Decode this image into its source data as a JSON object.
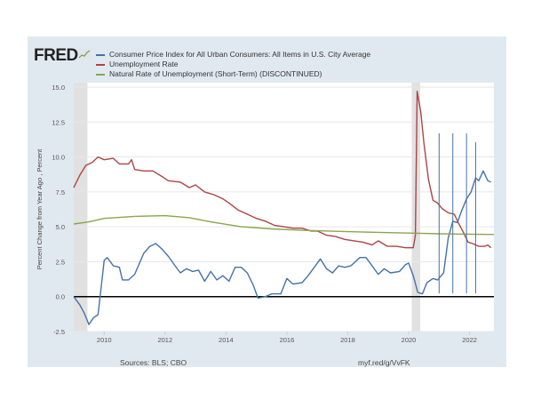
{
  "logo": "FRED",
  "colors": {
    "cpi": "#4572a7",
    "unrate": "#aa4643",
    "nrou": "#89a54e",
    "recession": "#e1e1e1",
    "zero_line": "#000000",
    "annotation": "#4572a7"
  },
  "chart_data": {
    "type": "line",
    "ylabel": "Percent Change from Year Ago , Percent",
    "xlim": [
      2009.0,
      2022.8
    ],
    "ylim": [
      -2.5,
      15.0
    ],
    "yticks": [
      "-2.5",
      "0.0",
      "2.5",
      "5.0",
      "7.5",
      "10.0",
      "12.5",
      "15.0"
    ],
    "ytick_values": [
      -2.5,
      0,
      2.5,
      5,
      7.5,
      10,
      12.5,
      15
    ],
    "xticks": [
      "2010",
      "2012",
      "2014",
      "2016",
      "2018",
      "2020",
      "2022"
    ],
    "xtick_values": [
      2010,
      2012,
      2014,
      2016,
      2018,
      2020,
      2022
    ],
    "grid": "horizontal",
    "legend_placement": "top-left",
    "recessions": [
      [
        2009.0,
        2009.45
      ],
      [
        2020.1,
        2020.38
      ]
    ],
    "annotation_lines": [
      2021.0,
      2021.45,
      2021.9,
      2022.2
    ],
    "series": [
      {
        "name": "Consumer Price Index for All Urban Consumers: All Items in U.S. City Average",
        "color": "#4572a7",
        "x": [
          2009.0,
          2009.2,
          2009.35,
          2009.5,
          2009.65,
          2009.8,
          2010.0,
          2010.1,
          2010.3,
          2010.5,
          2010.6,
          2010.8,
          2011.0,
          2011.3,
          2011.5,
          2011.7,
          2011.9,
          2012.1,
          2012.3,
          2012.5,
          2012.7,
          2012.9,
          2013.1,
          2013.3,
          2013.5,
          2013.7,
          2013.9,
          2014.1,
          2014.3,
          2014.5,
          2014.7,
          2014.9,
          2015.05,
          2015.3,
          2015.5,
          2015.8,
          2016.0,
          2016.2,
          2016.5,
          2016.7,
          2016.9,
          2017.1,
          2017.3,
          2017.5,
          2017.7,
          2017.9,
          2018.1,
          2018.4,
          2018.6,
          2018.8,
          2019.0,
          2019.2,
          2019.4,
          2019.7,
          2019.9,
          2020.0,
          2020.15,
          2020.3,
          2020.45,
          2020.6,
          2020.8,
          2020.95,
          2021.15,
          2021.3,
          2021.45,
          2021.6,
          2021.75,
          2021.9,
          2022.05,
          2022.2,
          2022.3,
          2022.45,
          2022.6,
          2022.7
        ],
        "y": [
          0.0,
          -0.6,
          -1.2,
          -2.0,
          -1.5,
          -1.3,
          2.6,
          2.8,
          2.2,
          2.1,
          1.2,
          1.2,
          1.6,
          3.1,
          3.6,
          3.8,
          3.4,
          2.9,
          2.3,
          1.7,
          2.0,
          1.8,
          1.9,
          1.1,
          1.8,
          1.2,
          1.5,
          1.1,
          2.1,
          2.1,
          1.7,
          0.8,
          -0.1,
          0.0,
          0.2,
          0.2,
          1.3,
          0.9,
          1.0,
          1.5,
          2.1,
          2.7,
          2.0,
          1.7,
          2.2,
          2.1,
          2.2,
          2.8,
          2.8,
          2.2,
          1.6,
          2.0,
          1.7,
          1.8,
          2.3,
          2.4,
          1.5,
          0.3,
          0.2,
          1.0,
          1.3,
          1.2,
          1.7,
          4.2,
          5.4,
          5.3,
          6.2,
          7.0,
          7.5,
          8.5,
          8.3,
          9.0,
          8.3,
          8.2
        ]
      },
      {
        "name": "Unemployment Rate",
        "color": "#aa4643",
        "x": [
          2009.0,
          2009.2,
          2009.4,
          2009.6,
          2009.8,
          2010.0,
          2010.3,
          2010.5,
          2010.8,
          2010.9,
          2011.0,
          2011.3,
          2011.6,
          2011.9,
          2012.1,
          2012.5,
          2012.8,
          2013.0,
          2013.3,
          2013.6,
          2013.9,
          2014.1,
          2014.4,
          2014.7,
          2015.0,
          2015.3,
          2015.6,
          2015.9,
          2016.2,
          2016.5,
          2016.8,
          2017.0,
          2017.3,
          2017.6,
          2017.9,
          2018.2,
          2018.5,
          2018.8,
          2019.0,
          2019.3,
          2019.6,
          2019.9,
          2020.15,
          2020.22,
          2020.28,
          2020.4,
          2020.5,
          2020.65,
          2020.8,
          2020.95,
          2021.1,
          2021.3,
          2021.5,
          2021.65,
          2021.8,
          2021.95,
          2022.1,
          2022.3,
          2022.5,
          2022.6,
          2022.7
        ],
        "y": [
          7.8,
          8.7,
          9.4,
          9.6,
          10.0,
          9.8,
          9.9,
          9.5,
          9.5,
          9.8,
          9.1,
          9.0,
          9.0,
          8.6,
          8.3,
          8.2,
          7.8,
          8.0,
          7.5,
          7.3,
          7.0,
          6.7,
          6.2,
          5.9,
          5.6,
          5.4,
          5.1,
          5.0,
          4.9,
          4.9,
          4.7,
          4.7,
          4.4,
          4.3,
          4.1,
          4.0,
          3.9,
          3.7,
          4.0,
          3.6,
          3.6,
          3.5,
          3.5,
          4.4,
          14.7,
          13.2,
          11.0,
          8.4,
          6.9,
          6.7,
          6.3,
          6.0,
          5.9,
          5.2,
          4.6,
          3.9,
          3.8,
          3.6,
          3.6,
          3.7,
          3.5
        ]
      },
      {
        "name": "Natural Rate of Unemployment (Short-Term) (DISCONTINUED)",
        "color": "#89a54e",
        "x": [
          2009.0,
          2009.5,
          2010.0,
          2011.0,
          2012.0,
          2012.8,
          2013.5,
          2014.5,
          2015.5,
          2016.5,
          2018.0,
          2019.0,
          2020.0,
          2021.0,
          2022.8
        ],
        "y": [
          5.2,
          5.35,
          5.6,
          5.75,
          5.8,
          5.65,
          5.35,
          5.0,
          4.85,
          4.75,
          4.65,
          4.6,
          4.55,
          4.5,
          4.45
        ]
      }
    ]
  },
  "footer": {
    "sources": "Sources: BLS; CBO",
    "link": "myf.red/g/VvFK"
  }
}
